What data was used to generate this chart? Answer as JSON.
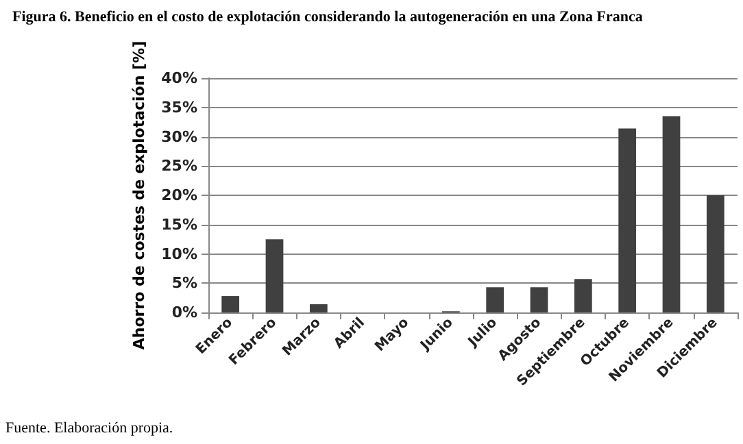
{
  "chart_data": {
    "type": "bar",
    "title": "Figura 6. Beneficio en el costo de explotación considerando la autogeneración en una Zona Franca",
    "ylabel": "Ahorro de costes de explotación [%]",
    "categories": [
      "Enero",
      "Febrero",
      "Marzo",
      "Abril",
      "Mayo",
      "Junio",
      "Julio",
      "Agosto",
      "Septiembre",
      "Octubre",
      "Noviembre",
      "Diciembre"
    ],
    "values": [
      2.8,
      12.5,
      1.4,
      0,
      0,
      0.2,
      4.3,
      4.3,
      5.7,
      31.4,
      33.5,
      20.0
    ],
    "color": "#404040",
    "ylim": [
      0,
      40
    ],
    "yticks": [
      {
        "value": 0,
        "label": "0%"
      },
      {
        "value": 5,
        "label": "5%"
      },
      {
        "value": 10,
        "label": "10%"
      },
      {
        "value": 15,
        "label": "15%"
      },
      {
        "value": 20,
        "label": "20%"
      },
      {
        "value": 25,
        "label": "25%"
      },
      {
        "value": 30,
        "label": "30%"
      },
      {
        "value": 35,
        "label": "35%"
      },
      {
        "value": 40,
        "label": "40%"
      }
    ],
    "grid": "y",
    "annotations": [
      "Fuente. Elaboración propia."
    ]
  }
}
